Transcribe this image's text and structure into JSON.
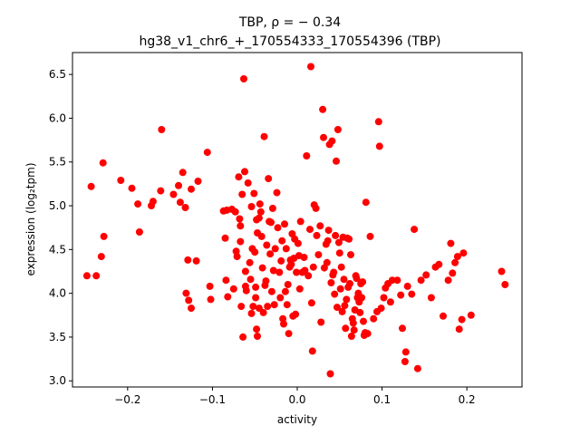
{
  "chart_data": {
    "type": "scatter",
    "title_line1": "TBP, ρ = − 0.34",
    "title_line2": "hg38_v1_chr6_+_170554333_170554396 (TBP)",
    "xlabel": "activity",
    "ylabel": "expression (log₂tpm)",
    "xlim": [
      -0.265,
      0.265
    ],
    "ylim": [
      2.93,
      6.75
    ],
    "xticks": [
      -0.2,
      -0.1,
      0.0,
      0.1,
      0.2
    ],
    "xtick_labels": [
      "−0.2",
      "−0.1",
      "0.0",
      "0.1",
      "0.2"
    ],
    "yticks": [
      3.0,
      3.5,
      4.0,
      4.5,
      5.0,
      5.5,
      6.0,
      6.5
    ],
    "ytick_labels": [
      "3.0",
      "3.5",
      "4.0",
      "4.5",
      "5.0",
      "5.5",
      "6.0",
      "6.5"
    ],
    "marker_color": "#ff0000",
    "grid": false,
    "points": [
      [
        -0.248,
        4.2
      ],
      [
        -0.243,
        5.22
      ],
      [
        -0.237,
        4.2
      ],
      [
        -0.231,
        4.42
      ],
      [
        -0.229,
        5.49
      ],
      [
        -0.228,
        4.65
      ],
      [
        -0.208,
        5.29
      ],
      [
        -0.195,
        5.2
      ],
      [
        -0.188,
        5.02
      ],
      [
        -0.186,
        4.7
      ],
      [
        -0.172,
        5.0
      ],
      [
        -0.17,
        5.05
      ],
      [
        -0.161,
        5.17
      ],
      [
        -0.16,
        5.87
      ],
      [
        -0.146,
        5.13
      ],
      [
        -0.14,
        5.23
      ],
      [
        -0.138,
        5.04
      ],
      [
        -0.135,
        5.38
      ],
      [
        -0.132,
        4.98
      ],
      [
        -0.131,
        4.0
      ],
      [
        -0.129,
        4.38
      ],
      [
        -0.128,
        3.92
      ],
      [
        -0.125,
        3.83
      ],
      [
        -0.125,
        5.19
      ],
      [
        -0.119,
        4.37
      ],
      [
        -0.117,
        5.28
      ],
      [
        -0.106,
        5.61
      ],
      [
        -0.103,
        4.08
      ],
      [
        -0.102,
        3.93
      ],
      [
        -0.087,
        4.94
      ],
      [
        -0.085,
        4.63
      ],
      [
        -0.084,
        4.15
      ],
      [
        -0.083,
        4.95
      ],
      [
        -0.082,
        3.96
      ],
      [
        -0.077,
        4.96
      ],
      [
        -0.075,
        4.05
      ],
      [
        -0.073,
        4.93
      ],
      [
        -0.072,
        4.48
      ],
      [
        -0.071,
        4.42
      ],
      [
        -0.069,
        5.33
      ],
      [
        -0.068,
        4.85
      ],
      [
        -0.067,
        4.77
      ],
      [
        -0.067,
        4.59
      ],
      [
        -0.066,
        3.85
      ],
      [
        -0.065,
        5.13
      ],
      [
        -0.064,
        3.5
      ],
      [
        -0.063,
        6.45
      ],
      [
        -0.062,
        5.39
      ],
      [
        -0.061,
        4.25
      ],
      [
        -0.061,
        4.08
      ],
      [
        -0.06,
        4.03
      ],
      [
        -0.058,
        5.26
      ],
      [
        -0.056,
        4.35
      ],
      [
        -0.055,
        4.16
      ],
      [
        -0.054,
        3.77
      ],
      [
        -0.054,
        4.99
      ],
      [
        -0.053,
        4.51
      ],
      [
        -0.052,
        3.85
      ],
      [
        -0.051,
        5.14
      ],
      [
        -0.05,
        4.47
      ],
      [
        -0.049,
        4.07
      ],
      [
        -0.049,
        3.95
      ],
      [
        -0.048,
        4.84
      ],
      [
        -0.048,
        3.59
      ],
      [
        -0.047,
        3.51
      ],
      [
        -0.047,
        4.69
      ],
      [
        -0.045,
        4.86
      ],
      [
        -0.045,
        3.83
      ],
      [
        -0.044,
        5.02
      ],
      [
        -0.043,
        4.93
      ],
      [
        -0.042,
        4.65
      ],
      [
        -0.041,
        4.29
      ],
      [
        -0.04,
        3.78
      ],
      [
        -0.039,
        5.79
      ],
      [
        -0.038,
        4.09
      ],
      [
        -0.037,
        4.14
      ],
      [
        -0.036,
        4.55
      ],
      [
        -0.035,
        3.85
      ],
      [
        -0.034,
        5.31
      ],
      [
        -0.033,
        4.82
      ],
      [
        -0.032,
        4.45
      ],
      [
        -0.031,
        4.81
      ],
      [
        -0.03,
        4.02
      ],
      [
        -0.029,
        4.97
      ],
      [
        -0.028,
        4.26
      ],
      [
        -0.027,
        3.87
      ],
      [
        -0.026,
        4.51
      ],
      [
        -0.024,
        5.15
      ],
      [
        -0.023,
        4.75
      ],
      [
        -0.021,
        4.24
      ],
      [
        -0.02,
        3.95
      ],
      [
        -0.019,
        4.37
      ],
      [
        -0.018,
        4.6
      ],
      [
        -0.017,
        3.71
      ],
      [
        -0.016,
        3.65
      ],
      [
        -0.015,
        4.79
      ],
      [
        -0.014,
        4.02
      ],
      [
        -0.013,
        4.51
      ],
      [
        -0.012,
        3.87
      ],
      [
        -0.011,
        4.1
      ],
      [
        -0.01,
        3.54
      ],
      [
        -0.009,
        4.3
      ],
      [
        -0.008,
        4.38
      ],
      [
        -0.007,
        4.33
      ],
      [
        -0.006,
        4.68
      ],
      [
        -0.005,
        3.74
      ],
      [
        -0.004,
        4.4
      ],
      [
        -0.003,
        4.62
      ],
      [
        -0.002,
        3.76
      ],
      [
        -0.001,
        4.24
      ],
      [
        0.001,
        4.57
      ],
      [
        0.002,
        4.43
      ],
      [
        0.003,
        4.05
      ],
      [
        0.004,
        4.82
      ],
      [
        0.006,
        4.24
      ],
      [
        0.008,
        4.41
      ],
      [
        0.009,
        4.26
      ],
      [
        0.011,
        5.57
      ],
      [
        0.013,
        4.2
      ],
      [
        0.015,
        4.73
      ],
      [
        0.016,
        6.59
      ],
      [
        0.017,
        3.89
      ],
      [
        0.018,
        3.34
      ],
      [
        0.019,
        4.3
      ],
      [
        0.02,
        5.01
      ],
      [
        0.022,
        4.97
      ],
      [
        0.023,
        4.66
      ],
      [
        0.025,
        4.44
      ],
      [
        0.027,
        4.77
      ],
      [
        0.028,
        3.67
      ],
      [
        0.03,
        6.1
      ],
      [
        0.031,
        5.78
      ],
      [
        0.032,
        4.29
      ],
      [
        0.034,
        4.56
      ],
      [
        0.035,
        4.35
      ],
      [
        0.036,
        4.6
      ],
      [
        0.037,
        4.72
      ],
      [
        0.038,
        5.7
      ],
      [
        0.039,
        3.08
      ],
      [
        0.04,
        4.12
      ],
      [
        0.041,
        5.74
      ],
      [
        0.042,
        4.21
      ],
      [
        0.043,
        4.24
      ],
      [
        0.044,
        3.99
      ],
      [
        0.045,
        4.66
      ],
      [
        0.046,
        5.51
      ],
      [
        0.047,
        3.84
      ],
      [
        0.048,
        5.87
      ],
      [
        0.049,
        4.58
      ],
      [
        0.05,
        4.46
      ],
      [
        0.051,
        4.05
      ],
      [
        0.052,
        4.3
      ],
      [
        0.053,
        3.79
      ],
      [
        0.054,
        4.64
      ],
      [
        0.055,
        4.16
      ],
      [
        0.056,
        3.86
      ],
      [
        0.057,
        3.6
      ],
      [
        0.058,
        3.93
      ],
      [
        0.059,
        4.63
      ],
      [
        0.06,
        4.07
      ],
      [
        0.061,
        4.62
      ],
      [
        0.062,
        4.11
      ],
      [
        0.063,
        4.44
      ],
      [
        0.064,
        3.51
      ],
      [
        0.065,
        3.71
      ],
      [
        0.066,
        3.66
      ],
      [
        0.067,
        3.58
      ],
      [
        0.068,
        3.81
      ],
      [
        0.069,
        4.2
      ],
      [
        0.07,
        4.17
      ],
      [
        0.071,
        3.95
      ],
      [
        0.072,
        4.0
      ],
      [
        0.073,
        3.9
      ],
      [
        0.074,
        3.78
      ],
      [
        0.075,
        4.11
      ],
      [
        0.076,
        3.95
      ],
      [
        0.077,
        4.13
      ],
      [
        0.078,
        3.68
      ],
      [
        0.079,
        3.52
      ],
      [
        0.08,
        3.55
      ],
      [
        0.081,
        5.04
      ],
      [
        0.083,
        3.54
      ],
      [
        0.086,
        4.65
      ],
      [
        0.09,
        3.71
      ],
      [
        0.094,
        3.79
      ],
      [
        0.096,
        5.96
      ],
      [
        0.097,
        5.68
      ],
      [
        0.099,
        3.83
      ],
      [
        0.102,
        3.95
      ],
      [
        0.104,
        4.06
      ],
      [
        0.107,
        4.11
      ],
      [
        0.11,
        3.9
      ],
      [
        0.112,
        4.15
      ],
      [
        0.118,
        4.15
      ],
      [
        0.122,
        3.98
      ],
      [
        0.124,
        3.6
      ],
      [
        0.127,
        3.22
      ],
      [
        0.128,
        3.33
      ],
      [
        0.13,
        4.08
      ],
      [
        0.135,
        3.99
      ],
      [
        0.138,
        4.73
      ],
      [
        0.142,
        3.14
      ],
      [
        0.146,
        4.15
      ],
      [
        0.152,
        4.21
      ],
      [
        0.158,
        3.95
      ],
      [
        0.163,
        4.3
      ],
      [
        0.167,
        4.33
      ],
      [
        0.172,
        3.74
      ],
      [
        0.178,
        4.15
      ],
      [
        0.181,
        4.57
      ],
      [
        0.183,
        4.23
      ],
      [
        0.186,
        4.35
      ],
      [
        0.189,
        4.42
      ],
      [
        0.191,
        3.59
      ],
      [
        0.194,
        3.7
      ],
      [
        0.196,
        4.46
      ],
      [
        0.205,
        3.75
      ],
      [
        0.241,
        4.25
      ],
      [
        0.245,
        4.1
      ]
    ]
  }
}
